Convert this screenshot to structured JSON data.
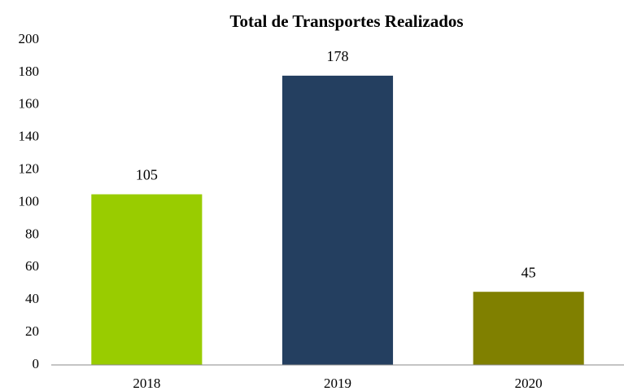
{
  "chart_data": {
    "type": "bar",
    "title": "Total de Transportes Realizados",
    "categories": [
      "2018",
      "2019",
      "2020"
    ],
    "values": [
      105,
      178,
      45
    ],
    "colors": [
      "#99cc00",
      "#243f60",
      "#808000"
    ],
    "ylim": [
      0,
      200
    ],
    "yticks": [
      0,
      20,
      40,
      60,
      80,
      100,
      120,
      140,
      160,
      180,
      200
    ],
    "grid": false,
    "data_labels": true
  }
}
